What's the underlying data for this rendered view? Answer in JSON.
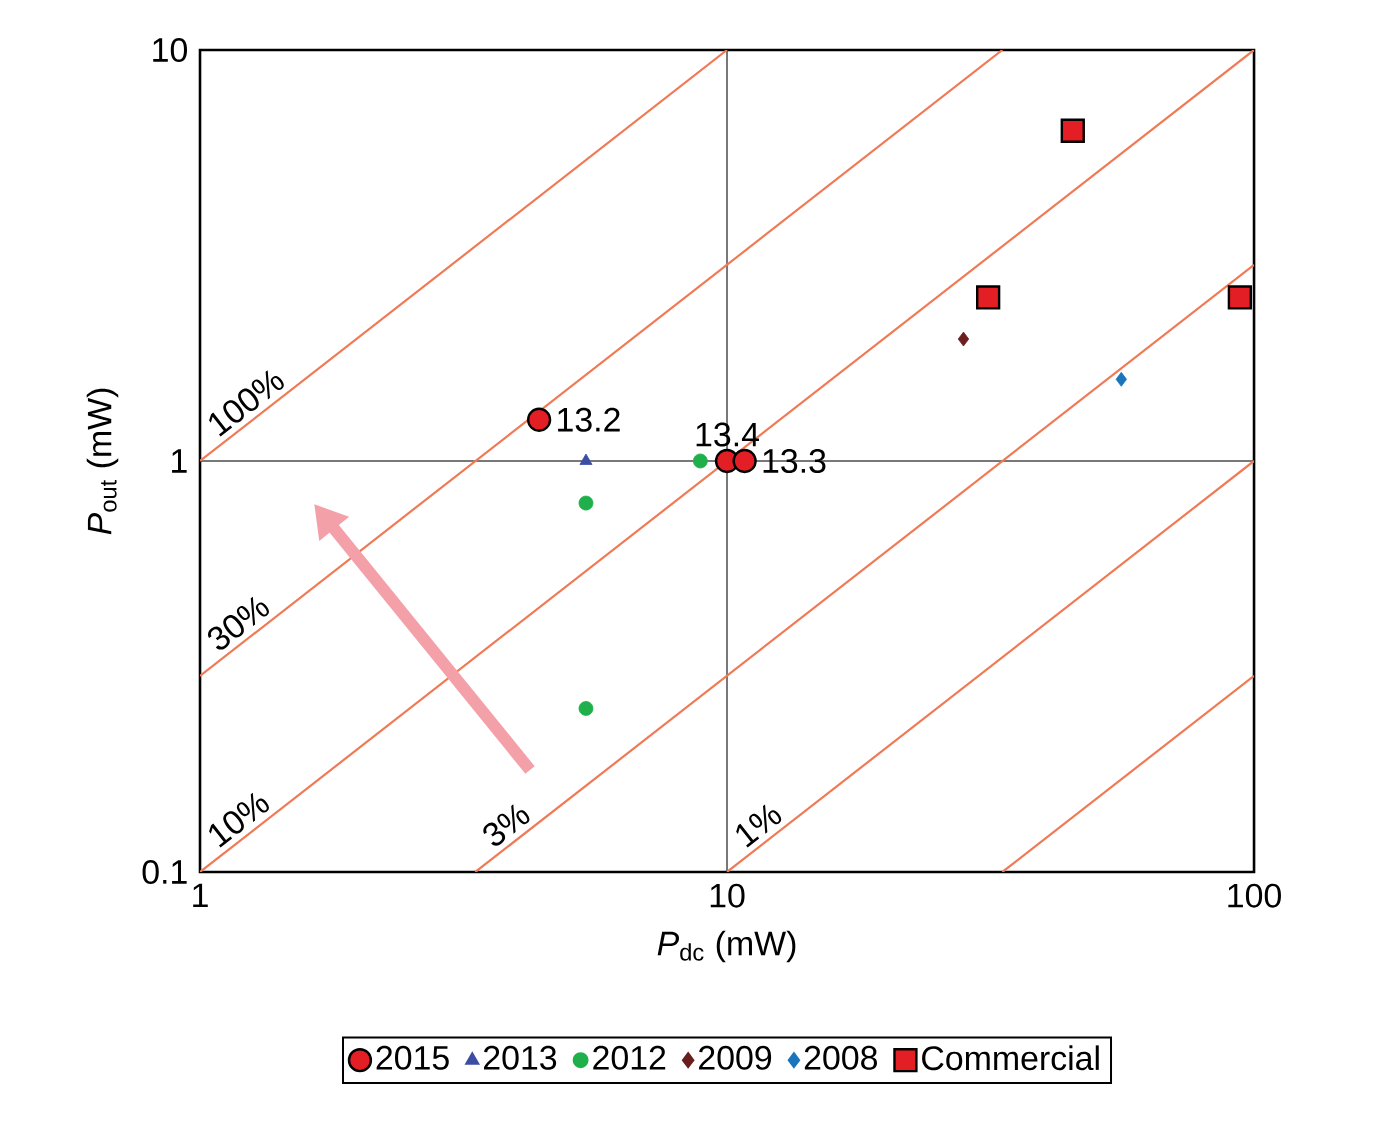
{
  "chart_data": {
    "type": "scatter",
    "xlabel": "*P*$_{dc}$ (mW)",
    "ylabel": "*P*$_{out}$ (mW)",
    "log": "xy",
    "xlim": [
      1,
      100
    ],
    "ylim": [
      0.1,
      10
    ],
    "xticks": [
      1,
      10,
      100
    ],
    "yticks": [
      0.1,
      1,
      10
    ],
    "grid": true,
    "legend": "bottom",
    "annotations": [
      {
        "text": "13.2",
        "x": 4.4,
        "y": 1.26
      },
      {
        "text": "13.4",
        "x": 10,
        "y": 1
      },
      {
        "text": "13.3",
        "x": 10.8,
        "y": 1
      }
    ],
    "series": [
      {
        "type": "line",
        "name": "100%",
        "color": "#f07a55",
        "marker": "none",
        "x": [
          1,
          10
        ],
        "values": [
          1,
          10
        ]
      },
      {
        "type": "line",
        "name": "30%",
        "color": "#f07a55",
        "marker": "none",
        "x": [
          1,
          33.3
        ],
        "values": [
          0.3,
          10
        ]
      },
      {
        "type": "line",
        "name": "10%",
        "color": "#f07a55",
        "marker": "none",
        "x": [
          1,
          100
        ],
        "values": [
          0.1,
          10
        ]
      },
      {
        "type": "line",
        "name": "3%",
        "color": "#f07a55",
        "marker": "none",
        "x": [
          3.33,
          100
        ],
        "values": [
          0.1,
          3
        ]
      },
      {
        "type": "line",
        "name": "1%",
        "color": "#f07a55",
        "marker": "none",
        "x": [
          10,
          100
        ],
        "values": [
          0.1,
          1
        ]
      },
      {
        "type": "line",
        "color": "#f07a55",
        "marker": "none",
        "x": [
          33.3,
          100
        ],
        "values": [
          0.1,
          0.3
        ]
      },
      {
        "name": "2015",
        "color": "#e31e24",
        "marker": "circle",
        "x": [
          4.4,
          10,
          10.8
        ],
        "values": [
          1.26,
          1,
          1
        ]
      },
      {
        "name": "2013",
        "color": "#3b4ea3",
        "marker": "triangle",
        "x": [
          5.4
        ],
        "values": [
          1
        ]
      },
      {
        "name": "2012",
        "color": "#1fb04c",
        "marker": "circle",
        "x": [
          5.4,
          5.4,
          8.9
        ],
        "values": [
          0.79,
          0.25,
          1
        ]
      },
      {
        "name": "2009",
        "color": "#6a1e1e",
        "marker": "diamond",
        "x": [
          28.1
        ],
        "values": [
          1.98
        ]
      },
      {
        "name": "2008",
        "color": "#1b75bc",
        "marker": "diamond",
        "x": [
          56
        ],
        "values": [
          1.58
        ]
      },
      {
        "name": "Commercial",
        "color": "#e31e24",
        "marker": "square",
        "x": [
          45.3,
          31.3,
          94
        ],
        "values": [
          6.36,
          2.5,
          2.5
        ]
      }
    ]
  }
}
